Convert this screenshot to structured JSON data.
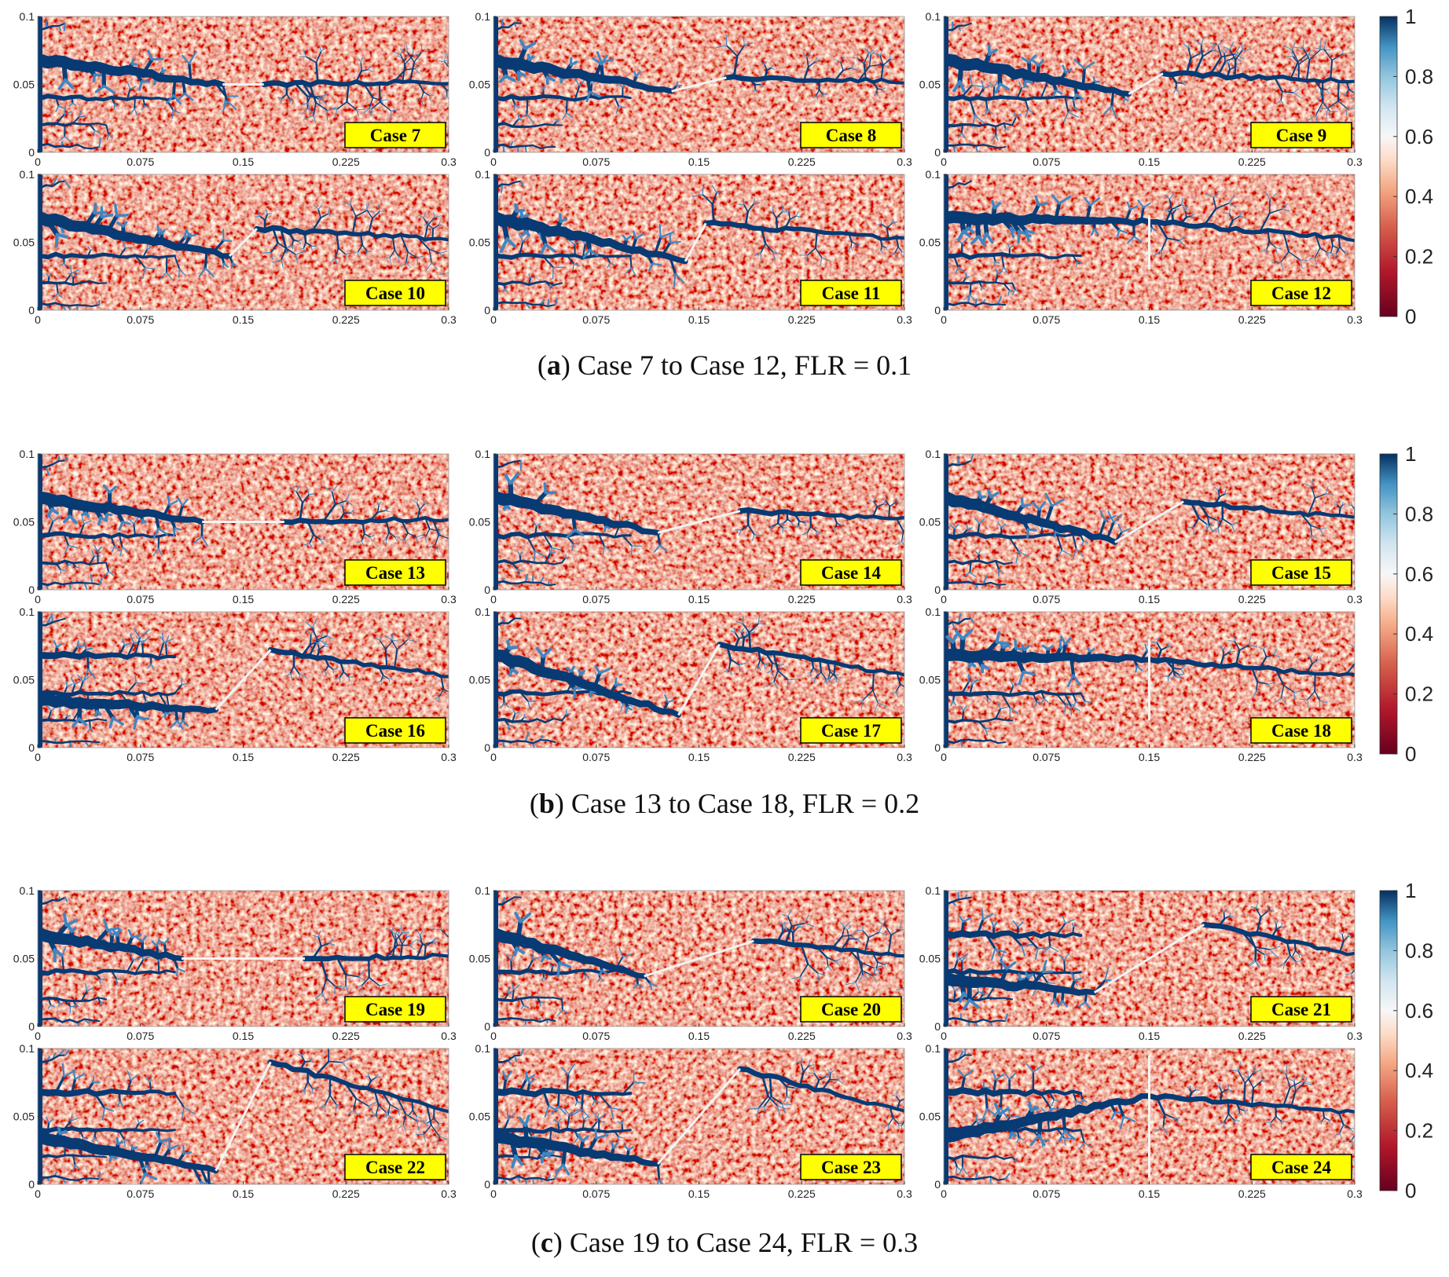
{
  "figure": {
    "xlim": [
      0,
      0.3
    ],
    "xticks": [
      0,
      0.075,
      0.15,
      0.225,
      0.3
    ],
    "ylim": [
      0,
      0.1
    ],
    "yticks": [
      0,
      0.05,
      0.1
    ],
    "colorbar": {
      "lim": [
        0,
        1
      ],
      "ticks": [
        0,
        0.2,
        0.4,
        0.6,
        0.8,
        1
      ]
    },
    "groups": [
      {
        "caption_open": "(",
        "letter": "a",
        "caption": ") Case 7 to Case 12, FLR = 0.1",
        "panels": [
          {
            "label": "Case 7",
            "fracture": {
              "x": [
                0.135,
                0.165
              ],
              "y": [
                0.05,
                0.05
              ]
            }
          },
          {
            "label": "Case 8",
            "fracture": {
              "x": [
                0.13,
                0.17
              ],
              "y": [
                0.045,
                0.055
              ]
            }
          },
          {
            "label": "Case 9",
            "fracture": {
              "x": [
                0.135,
                0.16
              ],
              "y": [
                0.043,
                0.058
              ]
            }
          },
          {
            "label": "Case 10",
            "fracture": {
              "x": [
                0.14,
                0.16
              ],
              "y": [
                0.04,
                0.06
              ]
            }
          },
          {
            "label": "Case 11",
            "fracture": {
              "x": [
                0.14,
                0.155
              ],
              "y": [
                0.036,
                0.064
              ]
            }
          },
          {
            "label": "Case 12",
            "fracture": {
              "x": [
                0.15,
                0.15
              ],
              "y": [
                0.03,
                0.07
              ]
            }
          }
        ]
      },
      {
        "caption_open": "(",
        "letter": "b",
        "caption": ") Case 13 to Case 18, FLR = 0.2",
        "panels": [
          {
            "label": "Case 13",
            "fracture": {
              "x": [
                0.12,
                0.18
              ],
              "y": [
                0.05,
                0.05
              ]
            }
          },
          {
            "label": "Case 14",
            "fracture": {
              "x": [
                0.12,
                0.18
              ],
              "y": [
                0.042,
                0.058
              ]
            }
          },
          {
            "label": "Case 15",
            "fracture": {
              "x": [
                0.125,
                0.175
              ],
              "y": [
                0.035,
                0.065
              ]
            }
          },
          {
            "label": "Case 16",
            "fracture": {
              "x": [
                0.13,
                0.17
              ],
              "y": [
                0.028,
                0.072
              ]
            }
          },
          {
            "label": "Case 17",
            "fracture": {
              "x": [
                0.135,
                0.165
              ],
              "y": [
                0.024,
                0.076
              ]
            }
          },
          {
            "label": "Case 18",
            "fracture": {
              "x": [
                0.15,
                0.15
              ],
              "y": [
                0.02,
                0.08
              ]
            }
          }
        ]
      },
      {
        "caption_open": "(",
        "letter": "c",
        "caption": ") Case 19 to Case 24, FLR = 0.3",
        "panels": [
          {
            "label": "Case 19",
            "fracture": {
              "x": [
                0.105,
                0.195
              ],
              "y": [
                0.05,
                0.05
              ]
            }
          },
          {
            "label": "Case 20",
            "fracture": {
              "x": [
                0.11,
                0.19
              ],
              "y": [
                0.037,
                0.063
              ]
            }
          },
          {
            "label": "Case 21",
            "fracture": {
              "x": [
                0.11,
                0.19
              ],
              "y": [
                0.025,
                0.075
              ]
            }
          },
          {
            "label": "Case 22",
            "fracture": {
              "x": [
                0.13,
                0.17
              ],
              "y": [
                0.01,
                0.09
              ]
            }
          },
          {
            "label": "Case 23",
            "fracture": {
              "x": [
                0.12,
                0.18
              ],
              "y": [
                0.015,
                0.085
              ]
            }
          },
          {
            "label": "Case 24",
            "fracture": {
              "x": [
                0.15,
                0.15
              ],
              "y": [
                0.005,
                0.095
              ]
            }
          }
        ]
      }
    ]
  }
}
